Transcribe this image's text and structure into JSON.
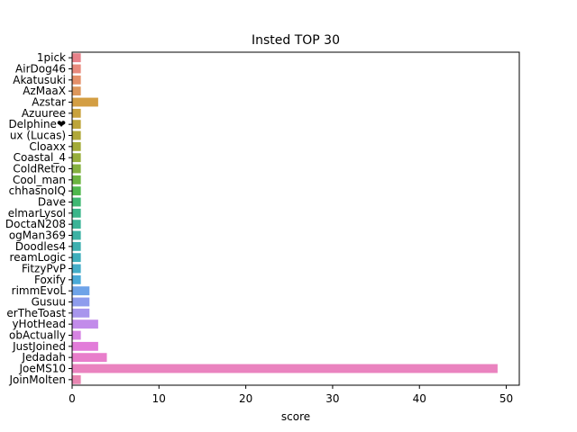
{
  "chart_data": {
    "type": "bar",
    "orientation": "horizontal",
    "title": "Insted TOP 30",
    "xlabel": "score",
    "ylabel": "",
    "xlim": [
      0,
      51.5
    ],
    "xticks": [
      0,
      10,
      20,
      30,
      40,
      50
    ],
    "grid": false,
    "categories": [
      "1pick",
      "AirDog46",
      "Akatusuki",
      "AzMaaX",
      "Azstar",
      "Azuuree",
      "Delphine❤",
      "ux (Lucas)",
      "Cloaxx",
      "Coastal_4",
      "ColdRetro",
      "Cool_man",
      "chhasnoIQ",
      "Dave",
      "elmarLysol",
      "DoctaN208",
      "ogMan369",
      "Doodles4",
      "reamLogic",
      "FitzyPvP",
      "Foxify",
      "rimmEvoL",
      "Gusuu",
      "erTheToast",
      "yHotHead",
      "obActually",
      "JustJoined",
      "Jedadah",
      "JoeMS10",
      "JoinMolten"
    ],
    "values": [
      1,
      1,
      1,
      1,
      3,
      1,
      1,
      1,
      1,
      1,
      1,
      1,
      1,
      1,
      1,
      1,
      1,
      1,
      1,
      1,
      1,
      2,
      2,
      2,
      3,
      1,
      3,
      4,
      49,
      1
    ],
    "colors": [
      "#e8828a",
      "#e88a7d",
      "#e5906a",
      "#dd975b",
      "#d39e43",
      "#c9a23c",
      "#bda53a",
      "#b0a83a",
      "#a3ab38",
      "#97ae3c",
      "#85b13f",
      "#6cb540",
      "#4fb84d",
      "#3fb872",
      "#3bb68a",
      "#3cb497",
      "#3db2a4",
      "#3eb0b0",
      "#3fafbc",
      "#44adc8",
      "#4aaad8",
      "#6ea3e8",
      "#8e9ced",
      "#a896ed",
      "#c28bea",
      "#d683e3",
      "#e27cd9",
      "#e87ecb",
      "#ea83bf",
      "#e886b2"
    ]
  }
}
